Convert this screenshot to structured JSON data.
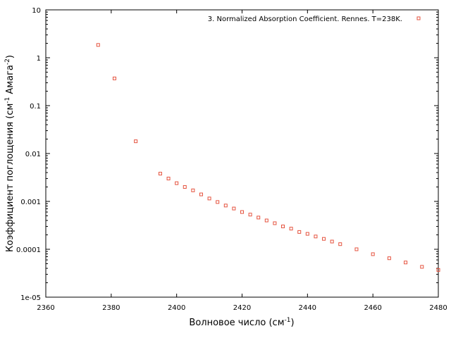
{
  "chart_data": {
    "type": "scatter",
    "xlabel": "Волновое число (см",
    "xlabel_sup": "-1",
    "xlabel_end": ")",
    "ylabel": "Коэффициент поглощения (см",
    "ylabel_sup1": "-1",
    "ylabel_mid": " Амага",
    "ylabel_sup2": "-2",
    "ylabel_end": ")",
    "xlim": [
      2360,
      2480
    ],
    "ylim": [
      1e-05,
      10
    ],
    "yscale": "log",
    "x_ticks": [
      "2360",
      "2380",
      "2400",
      "2420",
      "2440",
      "2460",
      "2480"
    ],
    "y_ticks": [
      "1e-05",
      "0.0001",
      "0.001",
      "0.01",
      "0.1",
      "1",
      "10"
    ],
    "grid": false,
    "legend_position": "top-right",
    "marker_color": "#e5533f",
    "series": [
      {
        "name": "3. Normalized Absorption Coefficient. Rennes. T=238K.",
        "x": [
          2376,
          2381,
          2387.5,
          2395,
          2397.5,
          2400,
          2402.5,
          2405,
          2407.5,
          2410,
          2412.5,
          2415,
          2417.5,
          2420,
          2422.5,
          2425,
          2427.5,
          2430,
          2432.5,
          2435,
          2437.5,
          2440,
          2442.5,
          2445,
          2447.5,
          2450,
          2455,
          2460,
          2465,
          2470,
          2475,
          2480
        ],
        "y": [
          1.85,
          0.37,
          0.018,
          0.0038,
          0.003,
          0.0024,
          0.002,
          0.0017,
          0.0014,
          0.00115,
          0.00097,
          0.00082,
          0.00071,
          0.0006,
          0.00053,
          0.00046,
          0.0004,
          0.00035,
          0.0003,
          0.00027,
          0.00023,
          0.00021,
          0.000185,
          0.000165,
          0.000145,
          0.000128,
          0.0001,
          7.9e-05,
          6.5e-05,
          5.3e-05,
          4.3e-05,
          3.7e-05
        ]
      }
    ]
  }
}
